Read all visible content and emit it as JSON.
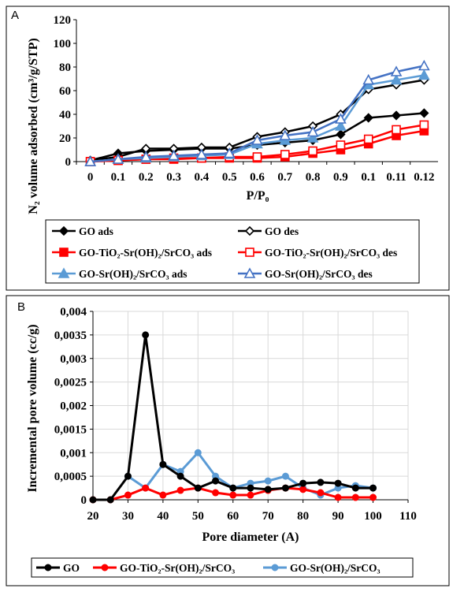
{
  "chart_data": [
    {
      "panel_label": "A",
      "type": "line",
      "xlabel": "P/P₀",
      "ylabel": "N₂ volume adsorbed (cm³/g/STP)",
      "categories": [
        "0",
        "0.1",
        "0.2",
        "0.3",
        "0.4",
        "0.5",
        "0.6",
        "0.7",
        "0.8",
        "0.9",
        "0.1",
        "0.11",
        "0.12"
      ],
      "ylim": [
        0,
        120
      ],
      "yticks": [
        "0",
        "20",
        "40",
        "60",
        "80",
        "100",
        "120"
      ],
      "grid": false,
      "legend_position": "bottom",
      "series": [
        {
          "name": "GO ads",
          "color": "#000000",
          "marker": "diamond",
          "filled": true,
          "values": [
            1,
            7,
            9,
            10,
            11,
            11,
            14,
            16,
            18,
            23,
            37,
            39,
            41
          ]
        },
        {
          "name": "GO des",
          "color": "#000000",
          "marker": "diamond",
          "filled": false,
          "values": [
            1,
            4,
            11,
            11,
            12,
            12,
            21,
            25,
            30,
            40,
            61,
            65,
            69
          ]
        },
        {
          "name": "GO-TiO₂-Sr(OH)₂/SrCO₃  ads",
          "color": "#ff0000",
          "marker": "square",
          "filled": true,
          "values": [
            0,
            1,
            2,
            2,
            3,
            3,
            3,
            4,
            7,
            10,
            15,
            22,
            26
          ]
        },
        {
          "name": "GO-TiO₂-Sr(OH)₂/SrCO₃  des",
          "color": "#ff0000",
          "marker": "square",
          "filled": false,
          "values": [
            0,
            1,
            2,
            3,
            3,
            4,
            4,
            6,
            9,
            14,
            19,
            27,
            31
          ]
        },
        {
          "name": "GO-Sr(OH)₂/SrCO₃  ads",
          "color": "#5b9bd5",
          "marker": "triangle",
          "filled": true,
          "values": [
            0,
            2,
            3,
            4,
            5,
            6,
            15,
            18,
            20,
            30,
            65,
            69,
            73
          ]
        },
        {
          "name": "GO-Sr(OH)₂/SrCO₃  des",
          "color": "#4472c4",
          "marker": "triangle",
          "filled": false,
          "values": [
            0,
            2,
            4,
            5,
            6,
            7,
            18,
            22,
            25,
            36,
            69,
            76,
            81
          ]
        }
      ]
    },
    {
      "panel_label": "B",
      "type": "line",
      "xlabel": "Pore diameter (A)",
      "ylabel": "Incremental pore volume (cc/g)",
      "xlim": [
        20,
        110
      ],
      "xticks": [
        "20",
        "30",
        "40",
        "50",
        "60",
        "70",
        "80",
        "90",
        "100",
        "110"
      ],
      "ylim": [
        0,
        0.004
      ],
      "yticks": [
        "0",
        "0,0005",
        "0,001",
        "0,0015",
        "0,002",
        "0,0025",
        "0,003",
        "0,0035",
        "0,004"
      ],
      "grid": true,
      "legend_position": "bottom",
      "series": [
        {
          "name": "GO",
          "color": "#000000",
          "x": [
            20,
            25,
            30,
            35,
            40,
            45,
            50,
            55,
            60,
            65,
            70,
            75,
            80,
            85,
            90,
            95,
            100
          ],
          "y": [
            0,
            0,
            0.0005,
            0.0035,
            0.00075,
            0.0005,
            0.00025,
            0.0004,
            0.00025,
            0.00025,
            0.00022,
            0.00025,
            0.00035,
            0.00037,
            0.00035,
            0.00025,
            0.00025
          ]
        },
        {
          "name": "GO-TiO₂-Sr(OH)₂/SrCO₃",
          "color": "#ff0000",
          "x": [
            20,
            25,
            30,
            35,
            40,
            45,
            50,
            55,
            60,
            65,
            70,
            75,
            80,
            85,
            90,
            95,
            100
          ],
          "y": [
            0,
            0,
            0.0001,
            0.00025,
            0.0001,
            0.0002,
            0.00025,
            0.00015,
            0.0001,
            0.0001,
            0.0002,
            0.00025,
            0.00022,
            0.00015,
            5e-05,
            5e-05,
            5e-05
          ]
        },
        {
          "name": "GO-Sr(OH)₂/SrCO₃",
          "color": "#5b9bd5",
          "x": [
            30,
            35,
            40,
            45,
            50,
            55,
            60,
            65,
            70,
            75,
            80,
            85,
            90,
            95,
            100
          ],
          "y": [
            0.0005,
            0.00025,
            0.00075,
            0.0006,
            0.001,
            0.0005,
            0.00025,
            0.00035,
            0.0004,
            0.0005,
            0.00025,
            0.0001,
            0.00025,
            0.0003,
            0.00025
          ]
        }
      ]
    }
  ]
}
